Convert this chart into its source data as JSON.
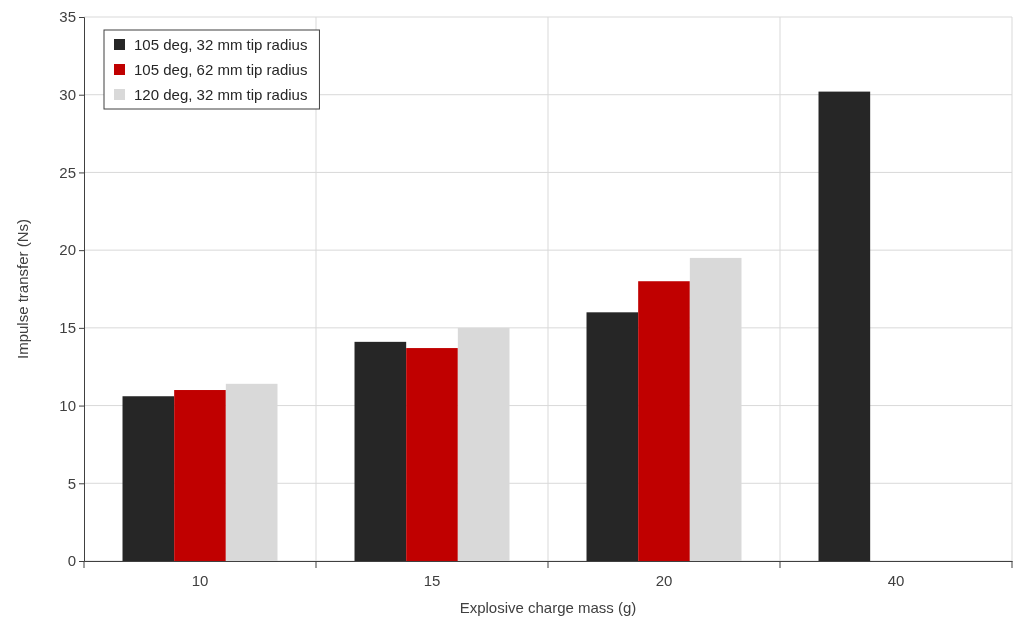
{
  "chart_data": {
    "type": "bar",
    "xlabel": "Explosive charge mass (g)",
    "ylabel": "Impulse transfer (Ns)",
    "categories": [
      "10",
      "15",
      "20",
      "40"
    ],
    "series": [
      {
        "name": "105 deg, 32 mm tip radius",
        "color": "#262626",
        "values": [
          10.6,
          14.1,
          16.0,
          30.2
        ]
      },
      {
        "name": "105 deg, 62 mm tip radius",
        "color": "#c00000",
        "values": [
          11.0,
          13.7,
          18.0,
          null
        ]
      },
      {
        "name": "120 deg, 32 mm tip radius",
        "color": "#d9d9d9",
        "values": [
          11.4,
          15.0,
          19.5,
          null
        ]
      }
    ],
    "ylim": [
      0,
      35
    ],
    "yticks": [
      0,
      5,
      10,
      15,
      20,
      25,
      30,
      35
    ],
    "grid": true,
    "legend": "top left"
  }
}
